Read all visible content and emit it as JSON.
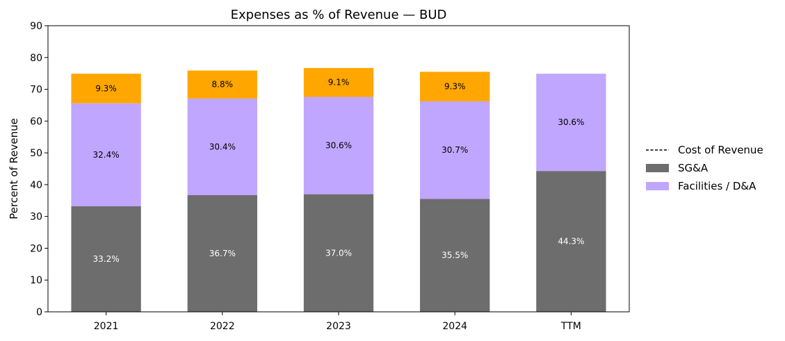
{
  "chart_data": {
    "type": "bar",
    "stacked": true,
    "title": "Expenses as % of Revenue — BUD",
    "xlabel": "",
    "ylabel": "Percent of Revenue",
    "ylim": [
      0,
      90
    ],
    "yticks": [
      0,
      10,
      20,
      30,
      40,
      50,
      60,
      70,
      80,
      90
    ],
    "grid": false,
    "legend_position": "right",
    "categories": [
      "2021",
      "2022",
      "2023",
      "2024",
      "TTM"
    ],
    "series": [
      {
        "name": "SG&A",
        "color": "#6d6d6d",
        "label_color": "#ffffff",
        "values": [
          33.2,
          36.7,
          37.0,
          35.5,
          44.3
        ],
        "labels": [
          "33.2%",
          "36.7%",
          "37.0%",
          "35.5%",
          "44.3%"
        ]
      },
      {
        "name": "Facilities / D&A",
        "color": "#c0a6ff",
        "label_color": "#000000",
        "values": [
          32.4,
          30.4,
          30.6,
          30.7,
          30.6
        ],
        "labels": [
          "32.4%",
          "30.4%",
          "30.6%",
          "30.7%",
          "30.6%"
        ]
      },
      {
        "name": "",
        "color": "#ffa600",
        "label_color": "#000000",
        "values": [
          9.3,
          8.8,
          9.1,
          9.3,
          0
        ],
        "labels": [
          "9.3%",
          "8.8%",
          "9.1%",
          "9.3%",
          ""
        ]
      }
    ],
    "legend": [
      {
        "name": "Cost of Revenue",
        "style": "dashed-line",
        "color": "#000000"
      },
      {
        "name": "SG&A",
        "style": "patch",
        "color": "#6d6d6d"
      },
      {
        "name": "Facilities / D&A",
        "style": "patch",
        "color": "#c0a6ff"
      }
    ]
  }
}
